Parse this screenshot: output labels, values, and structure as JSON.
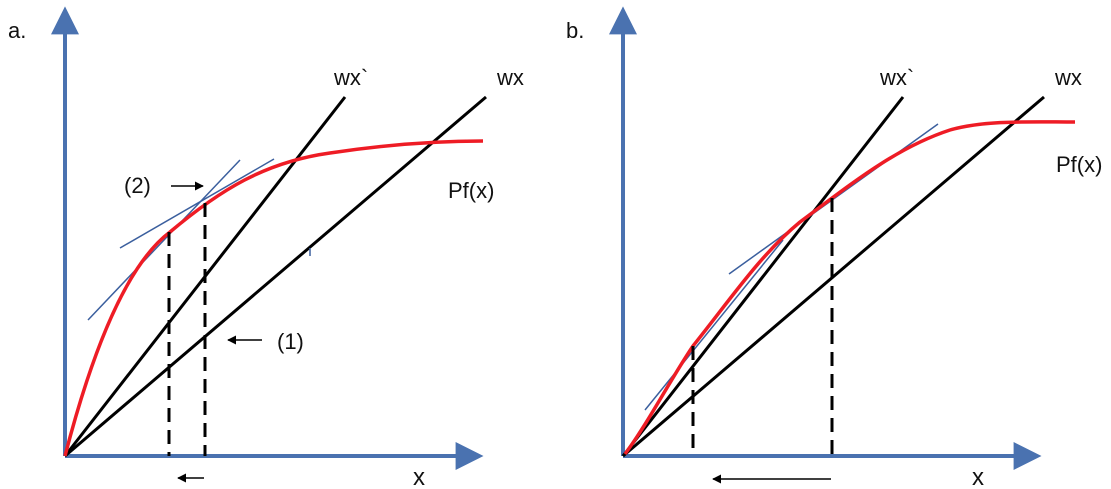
{
  "colors": {
    "axis": "#4a72b0",
    "curve": "#ee1c25",
    "line": "#000000",
    "tangent": "#3b5f9e"
  },
  "panels": [
    {
      "tag": "a.",
      "x_axis_label": "x",
      "line_steep_label": "wx`",
      "line_shallow_label": "wx",
      "curve_label": "Pf(x)",
      "marker_1_label": "(1)",
      "marker_2_label": "(2)"
    },
    {
      "tag": "b.",
      "x_axis_label": "x",
      "line_steep_label": "wx`",
      "line_shallow_label": "wx",
      "curve_label": "Pf(x)"
    }
  ]
}
